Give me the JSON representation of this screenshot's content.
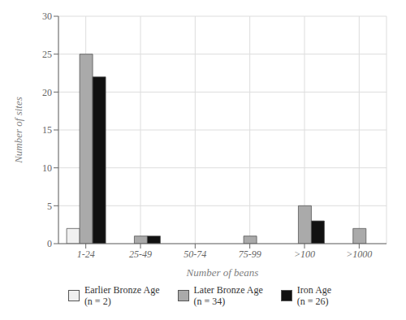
{
  "chart_data": {
    "type": "bar",
    "xlabel": "Number of beans",
    "ylabel": "Number of sites",
    "categories": [
      "1-24",
      "25-49",
      "50-74",
      "75-99",
      ">100",
      ">1000"
    ],
    "series": [
      {
        "name": "Earlier Bronze Age\n(n = 2)",
        "color": "#f0f0f0",
        "values": [
          2,
          0,
          0,
          0,
          0,
          0
        ]
      },
      {
        "name": "Later Bronze Age\n(n = 34)",
        "color": "#aaaaaa",
        "values": [
          25,
          1,
          0,
          1,
          5,
          2
        ]
      },
      {
        "name": "Iron Age\n(n = 26)",
        "color": "#111111",
        "values": [
          22,
          1,
          0,
          0,
          3,
          0
        ]
      }
    ],
    "ylim": [
      0,
      30
    ],
    "yticks": [
      0,
      5,
      10,
      15,
      20,
      25,
      30
    ],
    "grid": true,
    "legend": "bottom"
  }
}
